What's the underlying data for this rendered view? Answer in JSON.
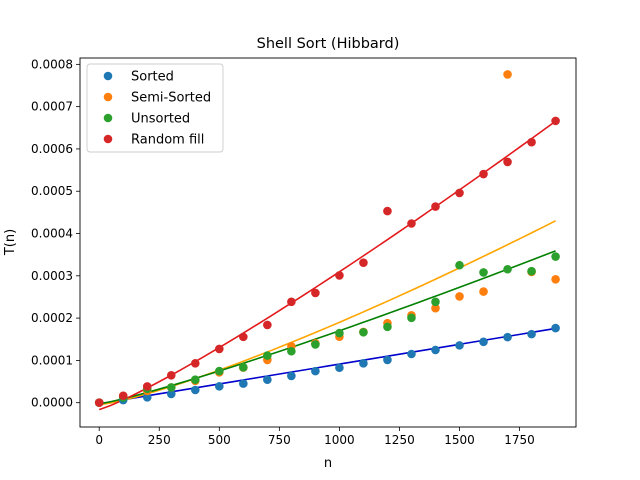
{
  "chart_data": {
    "type": "scatter",
    "title": "Shell Sort (Hibbard)",
    "xlabel": "n",
    "ylabel": "T(n)",
    "xlim": [
      -80,
      1985
    ],
    "ylim": [
      -5.75e-05,
      0.000815
    ],
    "xticks": [
      0,
      250,
      500,
      750,
      1000,
      1250,
      1500,
      1750
    ],
    "xtick_labels": [
      "0",
      "250",
      "500",
      "750",
      "1000",
      "1250",
      "1500",
      "1750"
    ],
    "yticks": [
      0,
      0.0001,
      0.0002,
      0.0003,
      0.0004,
      0.0005,
      0.0006,
      0.0007,
      0.0008
    ],
    "ytick_labels": [
      "0.0000",
      "0.0001",
      "0.0002",
      "0.0003",
      "0.0004",
      "0.0005",
      "0.0006",
      "0.0007",
      "0.0008"
    ],
    "legend_position": "top-left",
    "x": [
      0,
      100,
      200,
      300,
      400,
      500,
      600,
      700,
      800,
      900,
      1000,
      1100,
      1200,
      1300,
      1400,
      1500,
      1600,
      1700,
      1800,
      1900
    ],
    "series": [
      {
        "name": "Sorted",
        "marker_color": "#1f77b4",
        "fit_color": "#0000cd",
        "values": [
          1e-07,
          6.2e-06,
          1.27e-05,
          2.07e-05,
          3e-05,
          3.86e-05,
          4.51e-05,
          5.44e-05,
          6.33e-05,
          7.46e-05,
          8.26e-05,
          9.3e-05,
          0.0001011,
          0.0001151,
          0.0001246,
          0.0001355,
          0.000144,
          0.000155,
          0.0001621,
          0.0001764
        ],
        "fit": {
          "x": [
            0,
            1900
          ],
          "y": [
            -2.5e-06,
            0.0001755
          ],
          "power": 1.0
        }
      },
      {
        "name": "Semi-Sorted",
        "marker_color": "#ff7f0e",
        "fit_color": "#ffa500",
        "values": [
          1e-07,
          1.64e-05,
          2.76e-05,
          3.62e-05,
          5.18e-05,
          7.18e-05,
          8.3e-05,
          0.0001011,
          0.0001334,
          0.0001405,
          0.0001559,
          0.0001673,
          0.000188,
          0.0002067,
          0.0002235,
          0.0002513,
          0.0002627,
          0.0007762,
          0.0003091,
          0.0002917
        ],
        "fit": {
          "x": [
            0,
            1900
          ],
          "y": [
            -5e-06,
            0.00043
          ],
          "power": 1.25
        }
      },
      {
        "name": "Unsorted",
        "marker_color": "#2ca02c",
        "fit_color": "#008000",
        "values": [
          1e-07,
          1.24e-05,
          3.27e-05,
          3.62e-05,
          5.43e-05,
          7.47e-05,
          8.36e-05,
          0.0001113,
          0.0001216,
          0.0001377,
          0.0001645,
          0.0001665,
          0.0001794,
          0.0002007,
          0.0002385,
          0.000325,
          0.000308,
          0.0003155,
          0.0003109,
          0.0003455
        ],
        "fit": {
          "x": [
            0,
            1900
          ],
          "y": [
            -3e-06,
            0.000359
          ],
          "power": 1.15
        }
      },
      {
        "name": "Random fill",
        "marker_color": "#d62728",
        "fit_color": "#e31a1c",
        "values": [
          1e-07,
          1.64e-05,
          3.85e-05,
          6.48e-05,
          9.31e-05,
          0.0001271,
          0.0001556,
          0.0001838,
          0.0002386,
          0.0002594,
          0.0003009,
          0.000331,
          0.000453,
          0.0004237,
          0.0004637,
          0.000496,
          0.0005406,
          0.0005693,
          0.0006159,
          0.0006663
        ],
        "fit": {
          "x": [
            0,
            1900
          ],
          "y": [
            -1.65e-05,
            0.0006655
          ],
          "power": 1.15
        }
      }
    ]
  }
}
